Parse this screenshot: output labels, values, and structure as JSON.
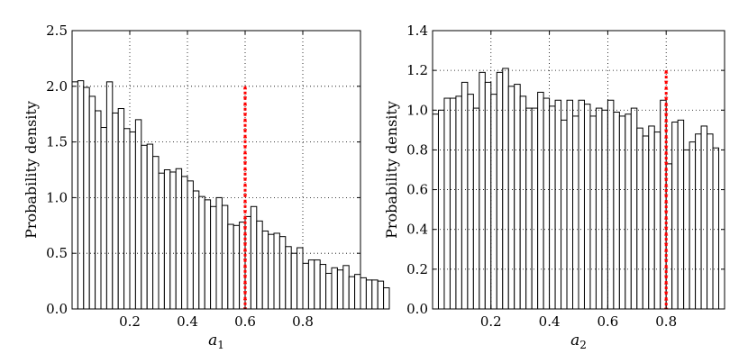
{
  "chart_data": [
    {
      "type": "bar",
      "histogram": true,
      "ylabel": "Probability density",
      "xlabel": "a",
      "xlabel_subscript": "1",
      "xlim": [
        0.0,
        1.0
      ],
      "ylim": [
        0.0,
        2.5
      ],
      "xticks": [
        "0.2",
        "0.4",
        "0.6",
        "0.8"
      ],
      "xtick_values": [
        0.2,
        0.4,
        0.6,
        0.8
      ],
      "yticks": [
        "0.0",
        "0.5",
        "1.0",
        "1.5",
        "2.0",
        "2.5"
      ],
      "ytick_values": [
        0.0,
        0.5,
        1.0,
        1.5,
        2.0,
        2.5
      ],
      "grid": true,
      "bin_width": 0.02,
      "values": [
        2.04,
        2.05,
        1.99,
        1.91,
        1.78,
        1.63,
        2.04,
        1.76,
        1.8,
        1.62,
        1.59,
        1.7,
        1.47,
        1.48,
        1.37,
        1.22,
        1.25,
        1.23,
        1.26,
        1.19,
        1.15,
        1.06,
        1.01,
        0.98,
        0.92,
        1.0,
        0.93,
        0.76,
        0.75,
        0.78,
        0.83,
        0.92,
        0.79,
        0.7,
        0.67,
        0.68,
        0.65,
        0.56,
        0.5,
        0.55,
        0.41,
        0.44,
        0.44,
        0.4,
        0.32,
        0.37,
        0.35,
        0.39,
        0.29,
        0.31,
        0.28,
        0.26,
        0.26,
        0.25,
        0.19
      ],
      "marker": {
        "x": 0.6,
        "y_top": 2.0,
        "color": "#ff0000",
        "style": "dotted-plus"
      },
      "bar_fill": "#ffffff",
      "bar_edge": "#000000"
    },
    {
      "type": "bar",
      "histogram": true,
      "ylabel": "Probability density",
      "xlabel": "a",
      "xlabel_subscript": "2",
      "xlim": [
        0.0,
        1.0
      ],
      "ylim": [
        0.0,
        1.4
      ],
      "xticks": [
        "0.2",
        "0.4",
        "0.6",
        "0.8"
      ],
      "xtick_values": [
        0.2,
        0.4,
        0.6,
        0.8
      ],
      "yticks": [
        "0.0",
        "0.2",
        "0.4",
        "0.6",
        "0.8",
        "1.0",
        "1.2",
        "1.4"
      ],
      "ytick_values": [
        0.0,
        0.2,
        0.4,
        0.6,
        0.8,
        1.0,
        1.2,
        1.4
      ],
      "grid": true,
      "bin_width": 0.02,
      "values": [
        0.98,
        1.0,
        1.06,
        1.06,
        1.07,
        1.14,
        1.08,
        1.01,
        1.19,
        1.14,
        1.08,
        1.19,
        1.21,
        1.12,
        1.13,
        1.07,
        1.01,
        1.01,
        1.09,
        1.06,
        1.02,
        1.05,
        0.95,
        1.05,
        0.97,
        1.05,
        1.03,
        0.97,
        1.01,
        1.0,
        1.05,
        0.99,
        0.97,
        0.98,
        1.01,
        0.91,
        0.87,
        0.92,
        0.89,
        1.05,
        0.73,
        0.94,
        0.95,
        0.8,
        0.84,
        0.88,
        0.92,
        0.88,
        0.81
      ],
      "marker": {
        "x": 0.8,
        "y_top": 1.2,
        "color": "#ff0000",
        "style": "dotted-plus"
      },
      "bar_fill": "#ffffff",
      "bar_edge": "#000000"
    }
  ]
}
